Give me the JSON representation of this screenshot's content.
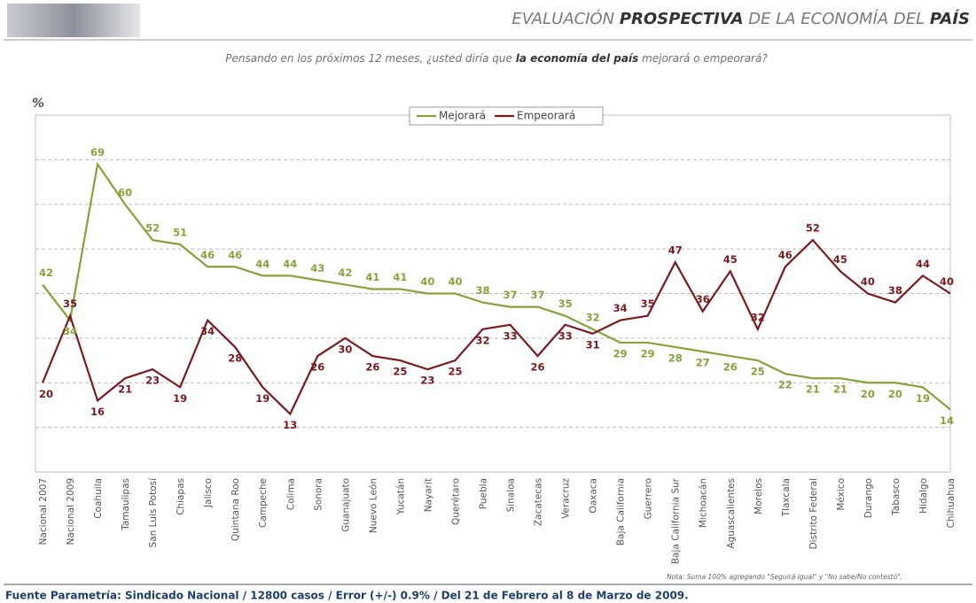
{
  "chart_data": {
    "type": "line",
    "title": [
      "EVALUACIÓN ",
      "PROSPECTIVA",
      " DE LA ECONOMÍA DEL ",
      "PAÍS"
    ],
    "subtitle": [
      "Pensando en los próximos 12 meses, ¿usted diría que ",
      "la economía del país",
      " mejorará o empeorará?"
    ],
    "y_label": "%",
    "categories": [
      "Nacional 2007",
      "Nacional 2009",
      "Coahuila",
      "Tamaulipas",
      "San Luis Potosí",
      "Chiapas",
      "Jalisco",
      "Quintana Roo",
      "Campeche",
      "Colima",
      "Sonora",
      "Guanajuato",
      "Nuevo León",
      "Yucatán",
      "Nayarit",
      "Querétaro",
      "Puebla",
      "Sinaloa",
      "Zacatecas",
      "Veracruz",
      "Oaxaca",
      "Baja California",
      "Guerrero",
      "Baja California Sur",
      "Michoacán",
      "Aguascalientes",
      "Morelos",
      "Tlaxcala",
      "Distrito Federal",
      "México",
      "Durango",
      "Tabasco",
      "Hidalgo",
      "Chihuahua"
    ],
    "series": [
      {
        "name": "Mejorará",
        "color": "#86a33a",
        "values": [
          42,
          34,
          69,
          60,
          52,
          51,
          46,
          46,
          44,
          44,
          43,
          42,
          41,
          41,
          40,
          40,
          38,
          37,
          37,
          35,
          32,
          29,
          29,
          28,
          27,
          26,
          25,
          22,
          21,
          21,
          20,
          20,
          19,
          14
        ]
      },
      {
        "name": "Empeorará",
        "color": "#7a1a1e",
        "values": [
          20,
          35,
          16,
          21,
          23,
          19,
          34,
          28,
          19,
          13,
          26,
          30,
          26,
          25,
          23,
          25,
          32,
          33,
          26,
          33,
          31,
          34,
          35,
          47,
          36,
          45,
          32,
          46,
          52,
          45,
          40,
          38,
          44,
          40
        ]
      }
    ],
    "ylim": [
      0,
      80
    ],
    "yticks": [
      10,
      20,
      30,
      40,
      50,
      60,
      70
    ],
    "grid": true,
    "legend": "top",
    "note": "Nota: Suma 100% agregando \"Seguirá igual\" y \"No sabe/No contestó\".",
    "source": "Fuente Parametría: Sindicado Nacional / 12800 casos / Error (+/-) 0.9% / Del 21 de Febrero al 8 de Marzo de 2009."
  }
}
